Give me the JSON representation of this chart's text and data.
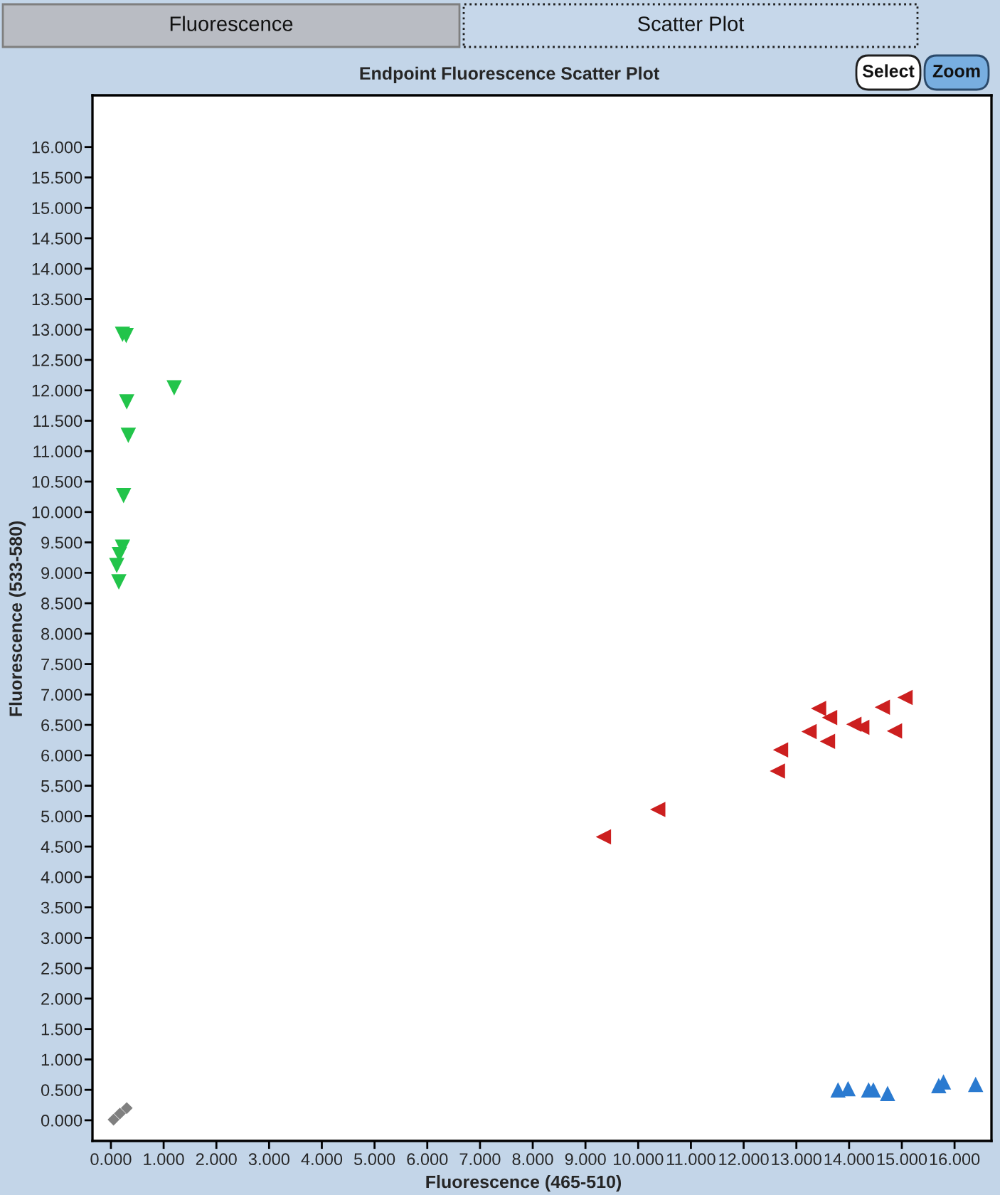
{
  "chart_data": {
    "type": "scatter",
    "title": "Endpoint Fluorescence Scatter Plot",
    "xlabel": "Fluorescence (465-510)",
    "ylabel": "Fluorescence (533-580)",
    "annotations": [
      "Fluorescence",
      "Scatter Plot",
      "Select",
      "Zoom"
    ],
    "series": [
      {
        "color": "#22c44a",
        "marker": "triangle-down",
        "x": [
          0.22,
          0.29,
          1.2,
          0.3,
          0.33,
          0.24,
          0.22,
          0.16,
          0.11,
          0.15
        ],
        "values": [
          12.92,
          12.9,
          12.04,
          11.81,
          11.26,
          10.27,
          9.42,
          9.3,
          9.12,
          8.85
        ]
      },
      {
        "color": "#cc1f1f",
        "marker": "triangle-left",
        "x": [
          9.34,
          10.37,
          12.64,
          12.7,
          13.24,
          13.42,
          13.63,
          13.59,
          14.09,
          14.24,
          14.63,
          14.86,
          15.06
        ],
        "values": [
          4.66,
          5.11,
          5.74,
          6.09,
          6.39,
          6.77,
          6.62,
          6.23,
          6.51,
          6.46,
          6.79,
          6.4,
          6.95
        ]
      },
      {
        "color": "#2a7ad0",
        "marker": "triangle",
        "x": [
          13.79,
          13.98,
          14.37,
          14.46,
          14.73,
          15.7,
          15.79,
          16.4
        ],
        "values": [
          0.5,
          0.52,
          0.5,
          0.5,
          0.44,
          0.57,
          0.63,
          0.59
        ]
      },
      {
        "color": "#808080",
        "marker": "diamond",
        "x": [
          0.05,
          0.17,
          0.3
        ],
        "values": [
          0.01,
          0.11,
          0.2
        ]
      }
    ],
    "xlim": [
      -0.35,
      16.7
    ],
    "ylim": [
      -0.34,
      16.85
    ],
    "xticks": [
      {
        "value": 0,
        "label": "0.000"
      },
      {
        "value": 1,
        "label": "1.000"
      },
      {
        "value": 2,
        "label": "2.000"
      },
      {
        "value": 3,
        "label": "3.000"
      },
      {
        "value": 4,
        "label": "4.000"
      },
      {
        "value": 5,
        "label": "5.000"
      },
      {
        "value": 6,
        "label": "6.000"
      },
      {
        "value": 7,
        "label": "7.000"
      },
      {
        "value": 8,
        "label": "8.000"
      },
      {
        "value": 9,
        "label": "9.000"
      },
      {
        "value": 10,
        "label": "10.000"
      },
      {
        "value": 11,
        "label": "11.000"
      },
      {
        "value": 12,
        "label": "12.000"
      },
      {
        "value": 13,
        "label": "13.000"
      },
      {
        "value": 14,
        "label": "14.000"
      },
      {
        "value": 15,
        "label": "15.000"
      },
      {
        "value": 16,
        "label": "16.000"
      }
    ],
    "yticks": [
      {
        "value": 0,
        "label": "0.000"
      },
      {
        "value": 0.5,
        "label": "0.500"
      },
      {
        "value": 1,
        "label": "1.000"
      },
      {
        "value": 1.5,
        "label": "1.500"
      },
      {
        "value": 2,
        "label": "2.000"
      },
      {
        "value": 2.5,
        "label": "2.500"
      },
      {
        "value": 3,
        "label": "3.000"
      },
      {
        "value": 3.5,
        "label": "3.500"
      },
      {
        "value": 4,
        "label": "4.000"
      },
      {
        "value": 4.5,
        "label": "4.500"
      },
      {
        "value": 5,
        "label": "5.000"
      },
      {
        "value": 5.5,
        "label": "5.500"
      },
      {
        "value": 6,
        "label": "6.000"
      },
      {
        "value": 6.5,
        "label": "6.500"
      },
      {
        "value": 7,
        "label": "7.000"
      },
      {
        "value": 7.5,
        "label": "7.500"
      },
      {
        "value": 8,
        "label": "8.000"
      },
      {
        "value": 8.5,
        "label": "8.500"
      },
      {
        "value": 9,
        "label": "9.000"
      },
      {
        "value": 9.5,
        "label": "9.500"
      },
      {
        "value": 10,
        "label": "10.000"
      },
      {
        "value": 10.5,
        "label": "10.500"
      },
      {
        "value": 11,
        "label": "11.000"
      },
      {
        "value": 11.5,
        "label": "11.500"
      },
      {
        "value": 12,
        "label": "12.000"
      },
      {
        "value": 12.5,
        "label": "12.500"
      },
      {
        "value": 13,
        "label": "13.000"
      },
      {
        "value": 13.5,
        "label": "13.500"
      },
      {
        "value": 14,
        "label": "14.000"
      },
      {
        "value": 14.5,
        "label": "14.500"
      },
      {
        "value": 15,
        "label": "15.000"
      },
      {
        "value": 15.5,
        "label": "15.500"
      },
      {
        "value": 16,
        "label": "16.000"
      }
    ]
  }
}
